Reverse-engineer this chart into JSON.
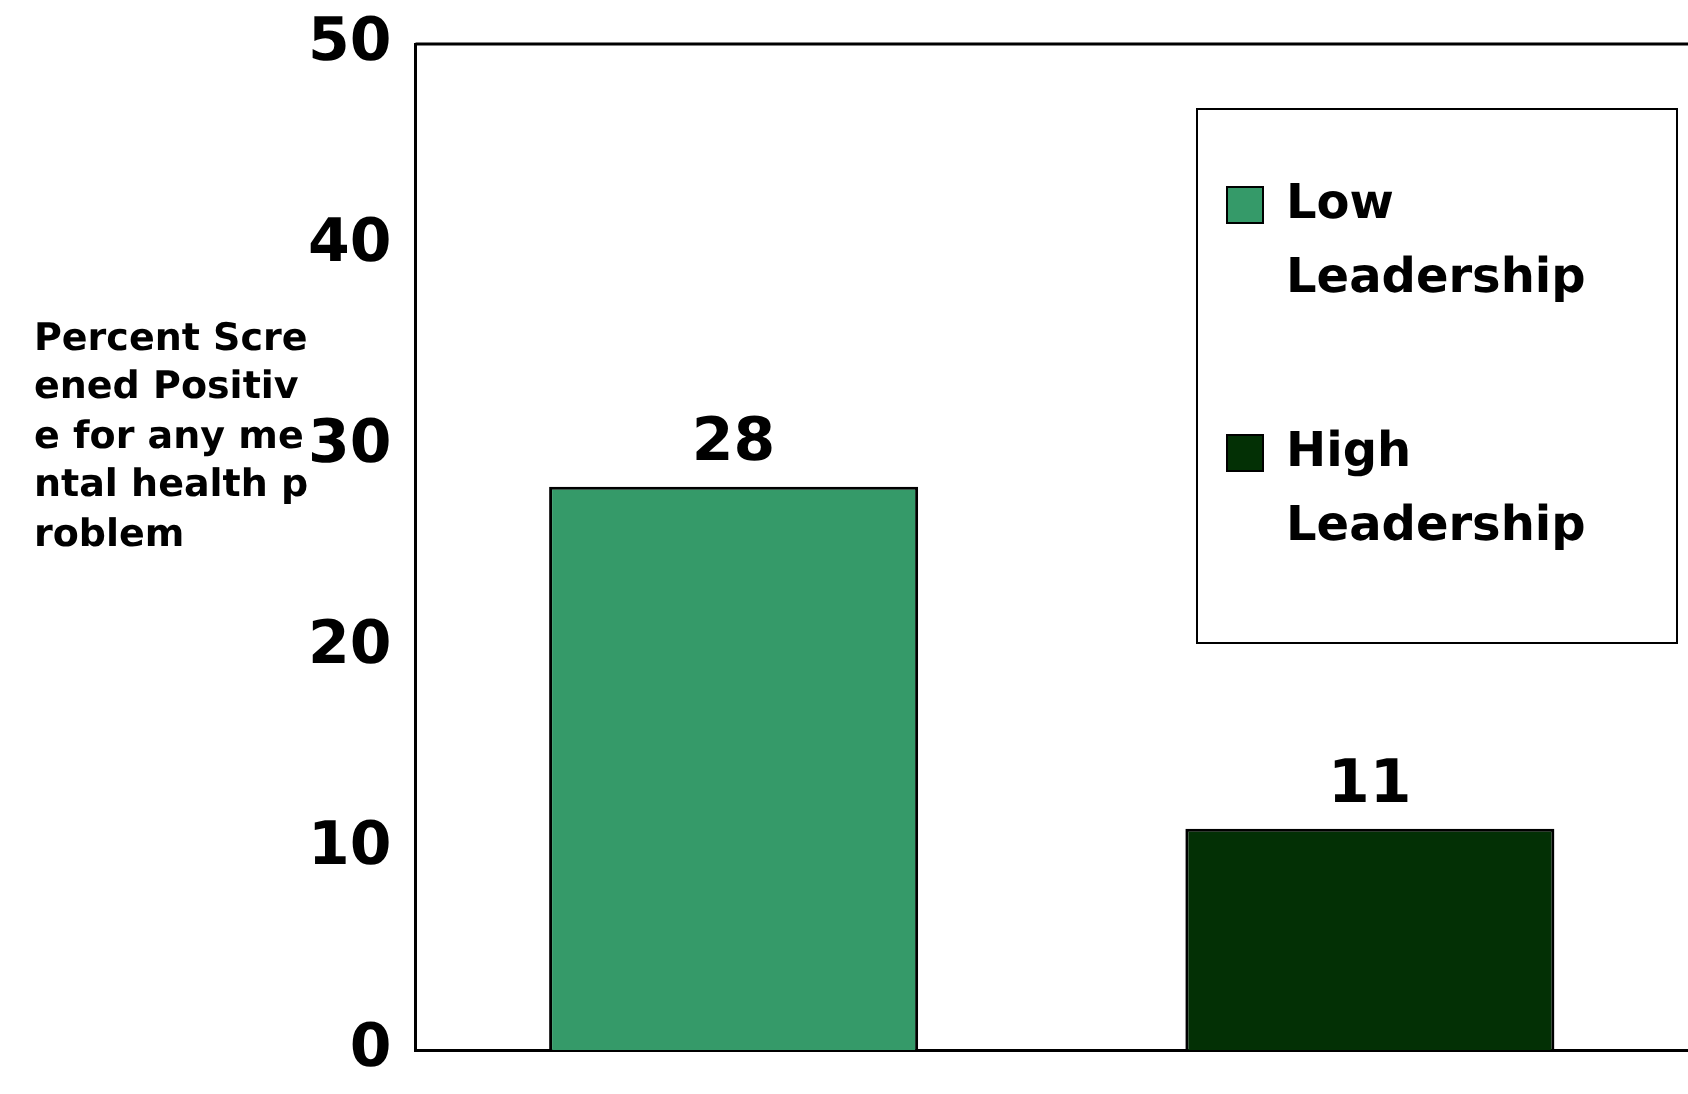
{
  "chart_data": {
    "type": "bar",
    "ylabel": "Percent Screened Positive for any mental health problem",
    "categories": [
      null
    ],
    "series": [
      {
        "name": "Low Leadership",
        "color": "#359a69",
        "values": [
          28
        ]
      },
      {
        "name": "High Leadership",
        "color": "#033005",
        "values": [
          11
        ]
      }
    ],
    "ylim": [
      0,
      50
    ],
    "yticks": [
      0,
      10,
      20,
      30,
      40,
      50
    ],
    "data_labels": true,
    "grid": false,
    "legend": "top right"
  }
}
